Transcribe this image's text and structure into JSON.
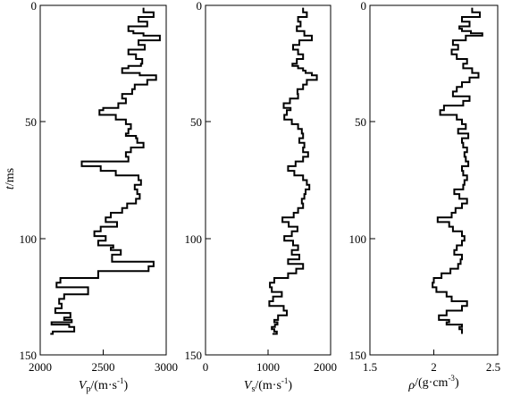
{
  "chart_data": [
    {
      "type": "line",
      "orientation": "vertical-depth",
      "ylabel": "t/ms",
      "xlabel": "Vp/(m·s⁻¹)",
      "xlabel_parts": {
        "base": "V",
        "sub": "p",
        "unit": "/(m·s",
        "sup": "-1",
        "close": ")"
      },
      "xlim": [
        2000,
        3000
      ],
      "ylim": [
        0,
        150
      ],
      "xticks": [
        "2000",
        "2500",
        "3000"
      ],
      "yticks": [
        "0",
        "50",
        "100",
        "150"
      ],
      "series": [
        {
          "x": [
            2820,
            2900,
            2780,
            2850,
            2700,
            2740,
            2820,
            2950,
            2780,
            2830,
            2700,
            2760,
            2810,
            2800,
            2700,
            2650,
            2790,
            2920,
            2850,
            2750,
            2730,
            2650,
            2680,
            2620,
            2500,
            2470,
            2600,
            2680,
            2720,
            2700,
            2680,
            2760,
            2770,
            2820,
            2720,
            2680,
            2700,
            2330,
            2480,
            2600,
            2780,
            2800,
            2750,
            2770,
            2790,
            2760,
            2690,
            2650,
            2560,
            2520,
            2610,
            2480,
            2430,
            2520,
            2460,
            2580,
            2560,
            2640,
            2570,
            2900,
            2860,
            2460,
            2160,
            2130,
            2380,
            2190,
            2150,
            2170,
            2120,
            2240,
            2190,
            2250,
            2090,
            2230,
            2270,
            2100,
            2080
          ],
          "y": [
            1,
            3,
            5,
            7,
            9,
            11,
            12,
            13,
            15,
            17,
            19,
            21,
            23,
            25,
            26,
            27,
            29,
            30,
            32,
            34,
            36,
            38,
            40,
            42,
            44,
            45,
            47,
            49,
            51,
            53,
            55,
            56,
            57,
            59,
            61,
            63,
            65,
            67,
            69,
            71,
            73,
            75,
            77,
            79,
            81,
            83,
            85,
            87,
            89,
            91,
            93,
            95,
            97,
            99,
            101,
            103,
            104,
            105,
            107,
            110,
            112,
            114,
            117,
            119,
            121,
            124,
            126,
            128,
            130,
            132,
            134,
            135,
            136,
            137,
            138,
            140,
            141
          ]
        }
      ]
    },
    {
      "type": "line",
      "orientation": "vertical-depth",
      "xlabel": "Vs/(m·s⁻¹)",
      "xlabel_parts": {
        "base": "V",
        "sub": "s",
        "unit": "/(m·s",
        "sup": "-1",
        "close": ")"
      },
      "xlim": [
        0,
        2000
      ],
      "ylim": [
        0,
        150
      ],
      "xticks": [
        "0",
        "1000",
        "2000"
      ],
      "yticks": [
        "0",
        "50",
        "100",
        "150"
      ],
      "series": [
        {
          "x": [
            1560,
            1620,
            1480,
            1520,
            1460,
            1580,
            1700,
            1500,
            1400,
            1480,
            1560,
            1460,
            1390,
            1480,
            1560,
            1600,
            1700,
            1780,
            1620,
            1560,
            1470,
            1480,
            1350,
            1250,
            1360,
            1300,
            1260,
            1380,
            1480,
            1540,
            1560,
            1500,
            1580,
            1560,
            1640,
            1560,
            1440,
            1320,
            1420,
            1560,
            1620,
            1660,
            1600,
            1580,
            1540,
            1560,
            1480,
            1410,
            1230,
            1330,
            1470,
            1380,
            1260,
            1400,
            1480,
            1380,
            1500,
            1320,
            1560,
            1450,
            1320,
            1100,
            1030,
            1060,
            1220,
            1080,
            1020,
            1250,
            1300,
            1160,
            1100,
            1150,
            1110,
            1060,
            1100,
            1140,
            1070
          ],
          "y": [
            1,
            3,
            5,
            7,
            9,
            11,
            13,
            15,
            17,
            19,
            21,
            23,
            25,
            26,
            27,
            28,
            29,
            30,
            32,
            34,
            36,
            38,
            40,
            42,
            44,
            45,
            47,
            49,
            51,
            53,
            55,
            57,
            59,
            61,
            63,
            65,
            67,
            69,
            71,
            73,
            75,
            77,
            79,
            81,
            83,
            85,
            87,
            89,
            91,
            93,
            95,
            97,
            99,
            101,
            103,
            105,
            107,
            109,
            111,
            113,
            115,
            117,
            119,
            121,
            123,
            125,
            127,
            129,
            131,
            133,
            135,
            136,
            137,
            138,
            139,
            140,
            141
          ]
        }
      ]
    },
    {
      "type": "line",
      "orientation": "vertical-depth",
      "xlabel": "ρ/(g·cm⁻³)",
      "xlabel_parts": {
        "base": "ρ",
        "sub": "",
        "unit": "/(g·cm",
        "sup": "-3",
        "close": ")"
      },
      "xlim": [
        1.5,
        2.5
      ],
      "ylim": [
        0,
        150
      ],
      "xticks": [
        "1.5",
        "2",
        "2.5"
      ],
      "yticks": [
        "0",
        "50",
        "100",
        "150"
      ],
      "series": [
        {
          "x": [
            2.3,
            2.36,
            2.22,
            2.28,
            2.2,
            2.22,
            2.29,
            2.38,
            2.25,
            2.15,
            2.19,
            2.14,
            2.18,
            2.26,
            2.23,
            2.3,
            2.35,
            2.28,
            2.22,
            2.18,
            2.15,
            2.28,
            2.23,
            2.08,
            2.05,
            2.18,
            2.22,
            2.25,
            2.19,
            2.27,
            2.22,
            2.23,
            2.26,
            2.24,
            2.25,
            2.27,
            2.22,
            2.23,
            2.26,
            2.24,
            2.23,
            2.16,
            2.2,
            2.26,
            2.22,
            2.17,
            2.14,
            2.03,
            2.12,
            2.15,
            2.22,
            2.24,
            2.22,
            2.18,
            2.16,
            2.22,
            2.21,
            2.19,
            2.13,
            2.06,
            2.0,
            1.99,
            2.02,
            2.1,
            2.14,
            2.26,
            2.22,
            2.1,
            2.04,
            2.12,
            2.1,
            2.22,
            2.2,
            2.22,
            2.22,
            2.22
          ],
          "y": [
            1,
            3,
            5,
            7,
            9,
            10,
            11,
            12,
            13,
            15,
            17,
            19,
            21,
            23,
            25,
            27,
            29,
            31,
            33,
            35,
            37,
            39,
            41,
            43,
            45,
            47,
            49,
            51,
            53,
            55,
            57,
            59,
            61,
            63,
            65,
            67,
            69,
            71,
            73,
            75,
            77,
            79,
            81,
            83,
            85,
            87,
            89,
            91,
            93,
            95,
            97,
            99,
            101,
            103,
            105,
            107,
            109,
            111,
            113,
            115,
            117,
            119,
            121,
            123,
            125,
            127,
            129,
            131,
            133,
            135,
            136,
            137,
            138,
            139,
            140,
            141
          ]
        }
      ]
    }
  ]
}
